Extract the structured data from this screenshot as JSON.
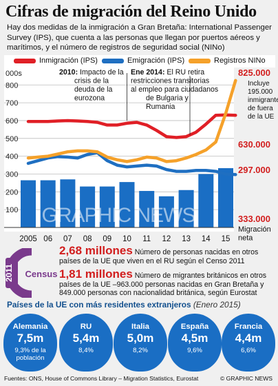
{
  "title": "Cifras de migración del Reino Unido",
  "subtitle": "Hay dos medidas de la inmigración a Gran Bretaña: International Passenger Survey (IPS), que cuenta a las personas que llegan por puertos aéreos y marítimos, y el número de registros de seguridad social (NINo)",
  "legend": {
    "immigration": "Inmigración (IPS)",
    "emigration": "Emigración (IPS)",
    "nino": "Registros NINo"
  },
  "colors": {
    "immigration": "#e01f26",
    "emigration": "#1f6fc1",
    "nino": "#f5a12a",
    "bars": "#1a6ec4",
    "highlight": "#d21e1e",
    "dark_blue": "#13508e"
  },
  "chart_data": {
    "type": "line",
    "x": [
      2005,
      2006,
      2007,
      2008,
      2009,
      2010,
      2011,
      2012,
      2013,
      2014,
      2015
    ],
    "x_tick_labels": [
      "2005",
      "06",
      "07",
      "08",
      "09",
      "10",
      "11",
      "12",
      "13",
      "14",
      "15"
    ],
    "ylabel": "000s",
    "y_ticks": [
      0,
      100,
      200,
      300,
      400,
      500,
      600,
      700,
      800
    ],
    "ylim": [
      0,
      880
    ],
    "series": [
      {
        "name": "Inmigración (IPS)",
        "type": "line",
        "x": [
          2005,
          2005.5,
          2006,
          2006.5,
          2007,
          2007.5,
          2008,
          2008.5,
          2009,
          2009.5,
          2010,
          2010.5,
          2011,
          2011.5,
          2012,
          2012.5,
          2013,
          2013.5,
          2014,
          2014.5,
          2015,
          2015.5
        ],
        "values": [
          595,
          595,
          595,
          598,
          600,
          598,
          595,
          590,
          575,
          575,
          585,
          590,
          575,
          545,
          510,
          505,
          510,
          535,
          580,
          630,
          632,
          630
        ]
      },
      {
        "name": "Emigración (IPS)",
        "type": "line",
        "x": [
          2005,
          2005.5,
          2006,
          2006.5,
          2007,
          2007.5,
          2008,
          2008.5,
          2009,
          2009.5,
          2010,
          2010.5,
          2011,
          2011.5,
          2012,
          2012.5,
          2013,
          2013.5,
          2014,
          2014.5,
          2015,
          2015.5
        ],
        "values": [
          360,
          375,
          390,
          398,
          395,
          390,
          410,
          420,
          375,
          350,
          340,
          345,
          350,
          345,
          325,
          315,
          315,
          320,
          320,
          315,
          300,
          297
        ]
      },
      {
        "name": "Registros NINo",
        "type": "line",
        "x": [
          2005,
          2005.5,
          2006,
          2006.5,
          2007,
          2007.5,
          2008,
          2008.5,
          2009,
          2009.5,
          2010,
          2010.5,
          2011,
          2011.5,
          2012,
          2012.5,
          2013,
          2013.5,
          2014,
          2014.5,
          2015,
          2015.5
        ],
        "values": [
          390,
          395,
          400,
          412,
          425,
          430,
          430,
          425,
          395,
          380,
          370,
          380,
          395,
          390,
          370,
          375,
          390,
          410,
          435,
          480,
          640,
          825
        ]
      },
      {
        "name": "Migración neta",
        "type": "bar",
        "x": [
          2005,
          2006,
          2007,
          2008,
          2009,
          2010,
          2011,
          2012,
          2013,
          2014,
          2015
        ],
        "values": [
          265,
          265,
          270,
          230,
          230,
          255,
          205,
          175,
          210,
          300,
          333
        ]
      }
    ],
    "annotations": [
      {
        "x": 2010,
        "text_bold": "2010:",
        "text": "Impacto de la crisis de la deuda de la eurozona"
      },
      {
        "x": 2014,
        "text_bold": "Ene 2014:",
        "text": "El RU retira restricciones transitorias al empleo para ciudadanos de Bulgaria y Rumania"
      }
    ],
    "end_labels": {
      "nino_value": "825.000",
      "nino_note": "Incluye 195.000 inmigrantes de fuera de la UE",
      "immigration_value": "630.000",
      "emigration_value": "297.000",
      "net_value": "333.000",
      "net_label": "Migración neta"
    }
  },
  "watermark": "GRAPHIC NEWS",
  "census": {
    "year": "2011",
    "label": "Census"
  },
  "stats": [
    {
      "value": "2,68 millones",
      "text": "Número de personas nacidas en otros países de la UE que viven en el RU según el Censo 2011"
    },
    {
      "value": "1,81 millones",
      "text": "Número de migrantes británicos en otros países de la UE –963.000 personas nacidas en Gran Bretaña y 849.000 personas con nacionalidad británica, según Eurostat"
    }
  ],
  "countries_section": {
    "title": "Países de la UE con más residentes extranjeros",
    "date": "(Enero 2015)",
    "countries": [
      {
        "name": "Alemania",
        "value": "7,5m",
        "pct": "9,3% de la población"
      },
      {
        "name": "RU",
        "value": "5,4m",
        "pct": "8,4%"
      },
      {
        "name": "Italia",
        "value": "5,0m",
        "pct": "8,2%"
      },
      {
        "name": "España",
        "value": "4,5m",
        "pct": "9,6%"
      },
      {
        "name": "Francia",
        "value": "4,4m",
        "pct": "6,6%"
      }
    ]
  },
  "footer": {
    "sources": "Fuentes: ONS, House of Commons Library – Migration Statistics, Eurostat",
    "copyright": "© GRAPHIC NEWS"
  }
}
